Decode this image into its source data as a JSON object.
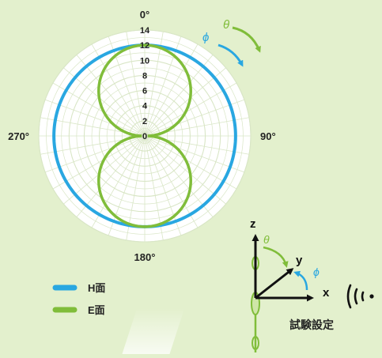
{
  "chart_data": {
    "type": "polar",
    "title": "",
    "angle_labels": {
      "top": "0°",
      "right": "90°",
      "bottom": "180°",
      "left": "270°"
    },
    "radial_ticks": [
      "0",
      "2",
      "4",
      "6",
      "8",
      "10",
      "12",
      "14"
    ],
    "radial_range": [
      0,
      14
    ],
    "grid": true,
    "legend_position": "bottom-left",
    "series": [
      {
        "name": "H面",
        "color": "#29a7e1",
        "shape": "omnidirectional",
        "max_value": 12
      },
      {
        "name": "E面",
        "color": "#80bd3a",
        "shape": "figure-eight",
        "max_value": 12
      }
    ]
  },
  "symbols": {
    "phi": "ϕ",
    "theta": "θ"
  },
  "setup": {
    "axis_x": "x",
    "axis_y": "y",
    "axis_z": "z",
    "phi": "ϕ",
    "theta": "θ",
    "caption": "試験設定",
    "wave_icon": "radio-wave-icon"
  },
  "colors": {
    "background": "#e3f0cd",
    "chart_fill": "#ffffff",
    "grid": "#d9e6c6",
    "h_plane": "#29a7e1",
    "e_plane": "#80bd3a",
    "text": "#222222"
  }
}
